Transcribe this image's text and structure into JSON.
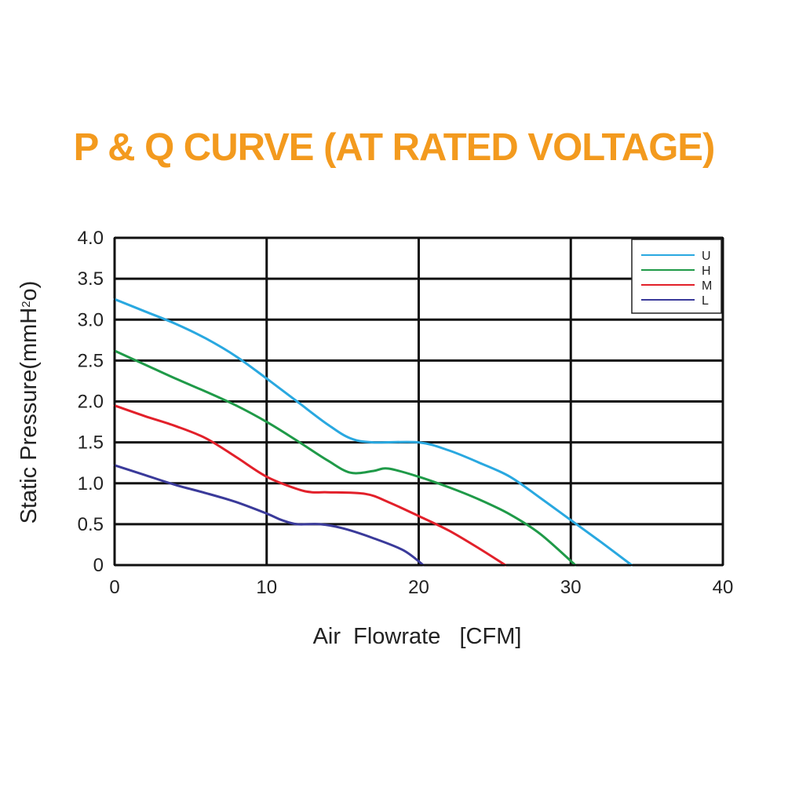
{
  "chart_data": {
    "type": "line",
    "title": "P & Q CURVE (AT RATED VOLTAGE)",
    "title_color": "#f39a1e",
    "xlabel": "Air  Flowrate   [CFM]",
    "ylabel_main": "Static Pressure(mmH",
    "ylabel_sup": "2",
    "ylabel_tail": "o)",
    "xlim": [
      0,
      40
    ],
    "ylim": [
      0,
      4.0
    ],
    "x_ticks": [
      0,
      10,
      20,
      30,
      40
    ],
    "y_ticks": [
      0,
      0.5,
      1.0,
      1.5,
      2.0,
      2.5,
      3.0,
      3.5,
      4.0
    ],
    "x_tick_labels": [
      "0",
      "10",
      "20",
      "30",
      "40"
    ],
    "y_tick_labels": [
      "0",
      "0.5",
      "1.0",
      "1.5",
      "2.0",
      "2.5",
      "3.0",
      "3.5",
      "4.0"
    ],
    "grid": true,
    "legend_position": "top-right",
    "series": [
      {
        "name": "U",
        "color": "#29a8e0",
        "points": [
          [
            0,
            3.25
          ],
          [
            2,
            3.1
          ],
          [
            4,
            2.95
          ],
          [
            6,
            2.77
          ],
          [
            8,
            2.55
          ],
          [
            10,
            2.28
          ],
          [
            12,
            2.0
          ],
          [
            14,
            1.72
          ],
          [
            15.5,
            1.55
          ],
          [
            17,
            1.5
          ],
          [
            20,
            1.5
          ],
          [
            22,
            1.4
          ],
          [
            24,
            1.25
          ],
          [
            26,
            1.08
          ],
          [
            28,
            0.82
          ],
          [
            30,
            0.55
          ],
          [
            32,
            0.28
          ],
          [
            34,
            0.0
          ]
        ]
      },
      {
        "name": "H",
        "color": "#1f9a48",
        "points": [
          [
            0,
            2.62
          ],
          [
            2,
            2.45
          ],
          [
            4,
            2.28
          ],
          [
            6,
            2.12
          ],
          [
            8,
            1.95
          ],
          [
            10,
            1.75
          ],
          [
            12,
            1.52
          ],
          [
            14,
            1.28
          ],
          [
            15.5,
            1.13
          ],
          [
            17,
            1.15
          ],
          [
            18,
            1.18
          ],
          [
            20,
            1.08
          ],
          [
            22,
            0.95
          ],
          [
            24,
            0.8
          ],
          [
            26,
            0.62
          ],
          [
            28,
            0.38
          ],
          [
            30.3,
            0.0
          ]
        ]
      },
      {
        "name": "M",
        "color": "#e2202a",
        "points": [
          [
            0,
            1.95
          ],
          [
            2,
            1.82
          ],
          [
            4,
            1.7
          ],
          [
            6,
            1.55
          ],
          [
            8,
            1.32
          ],
          [
            10,
            1.08
          ],
          [
            12,
            0.93
          ],
          [
            13,
            0.89
          ],
          [
            14,
            0.89
          ],
          [
            16.5,
            0.87
          ],
          [
            18,
            0.77
          ],
          [
            20,
            0.6
          ],
          [
            22,
            0.42
          ],
          [
            24,
            0.2
          ],
          [
            25.7,
            0.0
          ]
        ]
      },
      {
        "name": "L",
        "color": "#3a3a9a",
        "points": [
          [
            0,
            1.22
          ],
          [
            2,
            1.1
          ],
          [
            4,
            0.98
          ],
          [
            6,
            0.88
          ],
          [
            8,
            0.77
          ],
          [
            10,
            0.63
          ],
          [
            11,
            0.55
          ],
          [
            12,
            0.5
          ],
          [
            13.5,
            0.5
          ],
          [
            15,
            0.45
          ],
          [
            17,
            0.33
          ],
          [
            19,
            0.18
          ],
          [
            20.3,
            0.0
          ]
        ]
      }
    ]
  }
}
